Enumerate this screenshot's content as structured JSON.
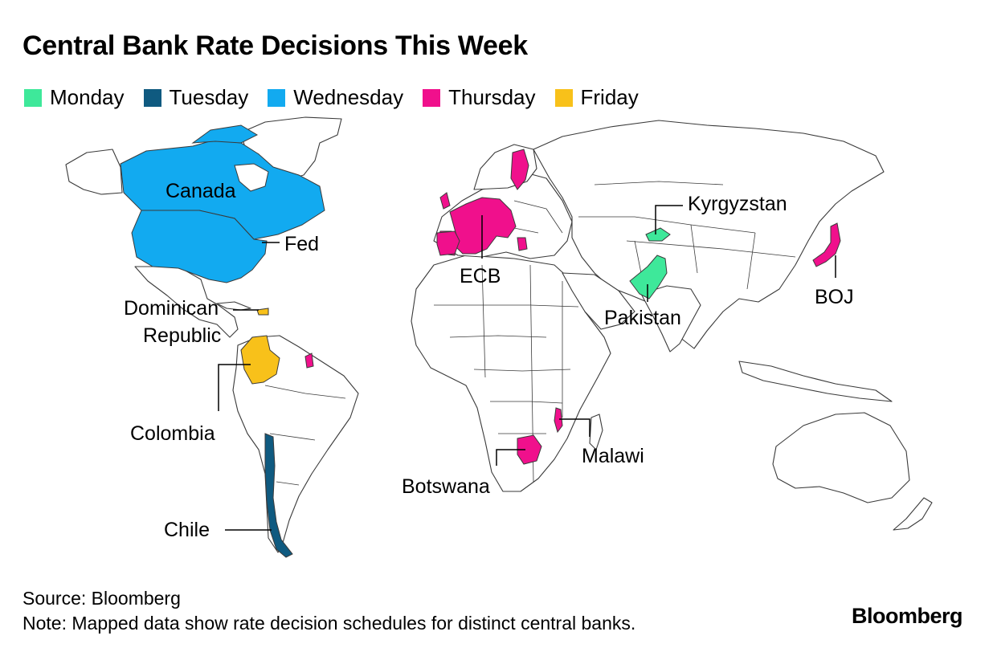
{
  "title": "Central Bank Rate Decisions This Week",
  "legend": [
    {
      "label": "Monday",
      "color": "#3ee89a"
    },
    {
      "label": "Tuesday",
      "color": "#0f5a80"
    },
    {
      "label": "Wednesday",
      "color": "#12aaf0"
    },
    {
      "label": "Thursday",
      "color": "#f0108c"
    },
    {
      "label": "Friday",
      "color": "#f8c11a"
    }
  ],
  "labels": {
    "canada": "Canada",
    "fed": "Fed",
    "ecb": "ECB",
    "kyrgyzstan": "Kyrgyzstan",
    "pakistan": "Pakistan",
    "boj": "BOJ",
    "dominican_line1": "Dominican",
    "dominican_line2": "Republic",
    "colombia": "Colombia",
    "botswana": "Botswana",
    "malawi": "Malawi",
    "chile": "Chile"
  },
  "map_data": [
    {
      "region": "Canada",
      "day": "Wednesday"
    },
    {
      "region": "United States (Fed)",
      "day": "Wednesday"
    },
    {
      "region": "Chile",
      "day": "Tuesday"
    },
    {
      "region": "Euro area (ECB)",
      "day": "Thursday"
    },
    {
      "region": "United Kingdom",
      "day": "Thursday"
    },
    {
      "region": "Sweden",
      "day": "Thursday"
    },
    {
      "region": "Japan (BOJ)",
      "day": "Thursday"
    },
    {
      "region": "Botswana",
      "day": "Thursday"
    },
    {
      "region": "Malawi",
      "day": "Thursday"
    },
    {
      "region": "French Guiana",
      "day": "Thursday"
    },
    {
      "region": "Kyrgyzstan",
      "day": "Monday"
    },
    {
      "region": "Pakistan",
      "day": "Monday"
    },
    {
      "region": "Colombia",
      "day": "Friday"
    },
    {
      "region": "Dominican Republic",
      "day": "Friday"
    }
  ],
  "footer": {
    "source": "Source: Bloomberg",
    "note": "Note: Mapped data show rate decision schedules for distinct central banks."
  },
  "brand": "Bloomberg"
}
